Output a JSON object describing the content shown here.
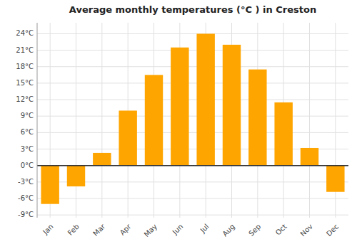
{
  "chart_data": {
    "type": "bar",
    "title": "Average monthly temperatures (°C ) in Creston",
    "categories": [
      "Jan",
      "Feb",
      "Mar",
      "Apr",
      "May",
      "Jun",
      "Jul",
      "Aug",
      "Sep",
      "Oct",
      "Nov",
      "Dec"
    ],
    "values": [
      -7.0,
      -3.8,
      2.3,
      10.0,
      16.5,
      21.5,
      24.0,
      22.0,
      17.5,
      11.5,
      3.2,
      -4.8
    ],
    "color": "#FFA500",
    "ylim": [
      -9.5,
      26.0
    ],
    "yticks": [
      {
        "value": -9,
        "label": "-9°C"
      },
      {
        "value": -6,
        "label": "-6°C"
      },
      {
        "value": -3,
        "label": "-3°C"
      },
      {
        "value": 0,
        "label": "0°C"
      },
      {
        "value": 3,
        "label": "3°C"
      },
      {
        "value": 6,
        "label": "6°C"
      },
      {
        "value": 9,
        "label": "9°C"
      },
      {
        "value": 12,
        "label": "12°C"
      },
      {
        "value": 15,
        "label": "15°C"
      },
      {
        "value": 18,
        "label": "18°C"
      },
      {
        "value": 21,
        "label": "21°C"
      },
      {
        "value": 24,
        "label": "24°C"
      }
    ],
    "grid": true
  }
}
